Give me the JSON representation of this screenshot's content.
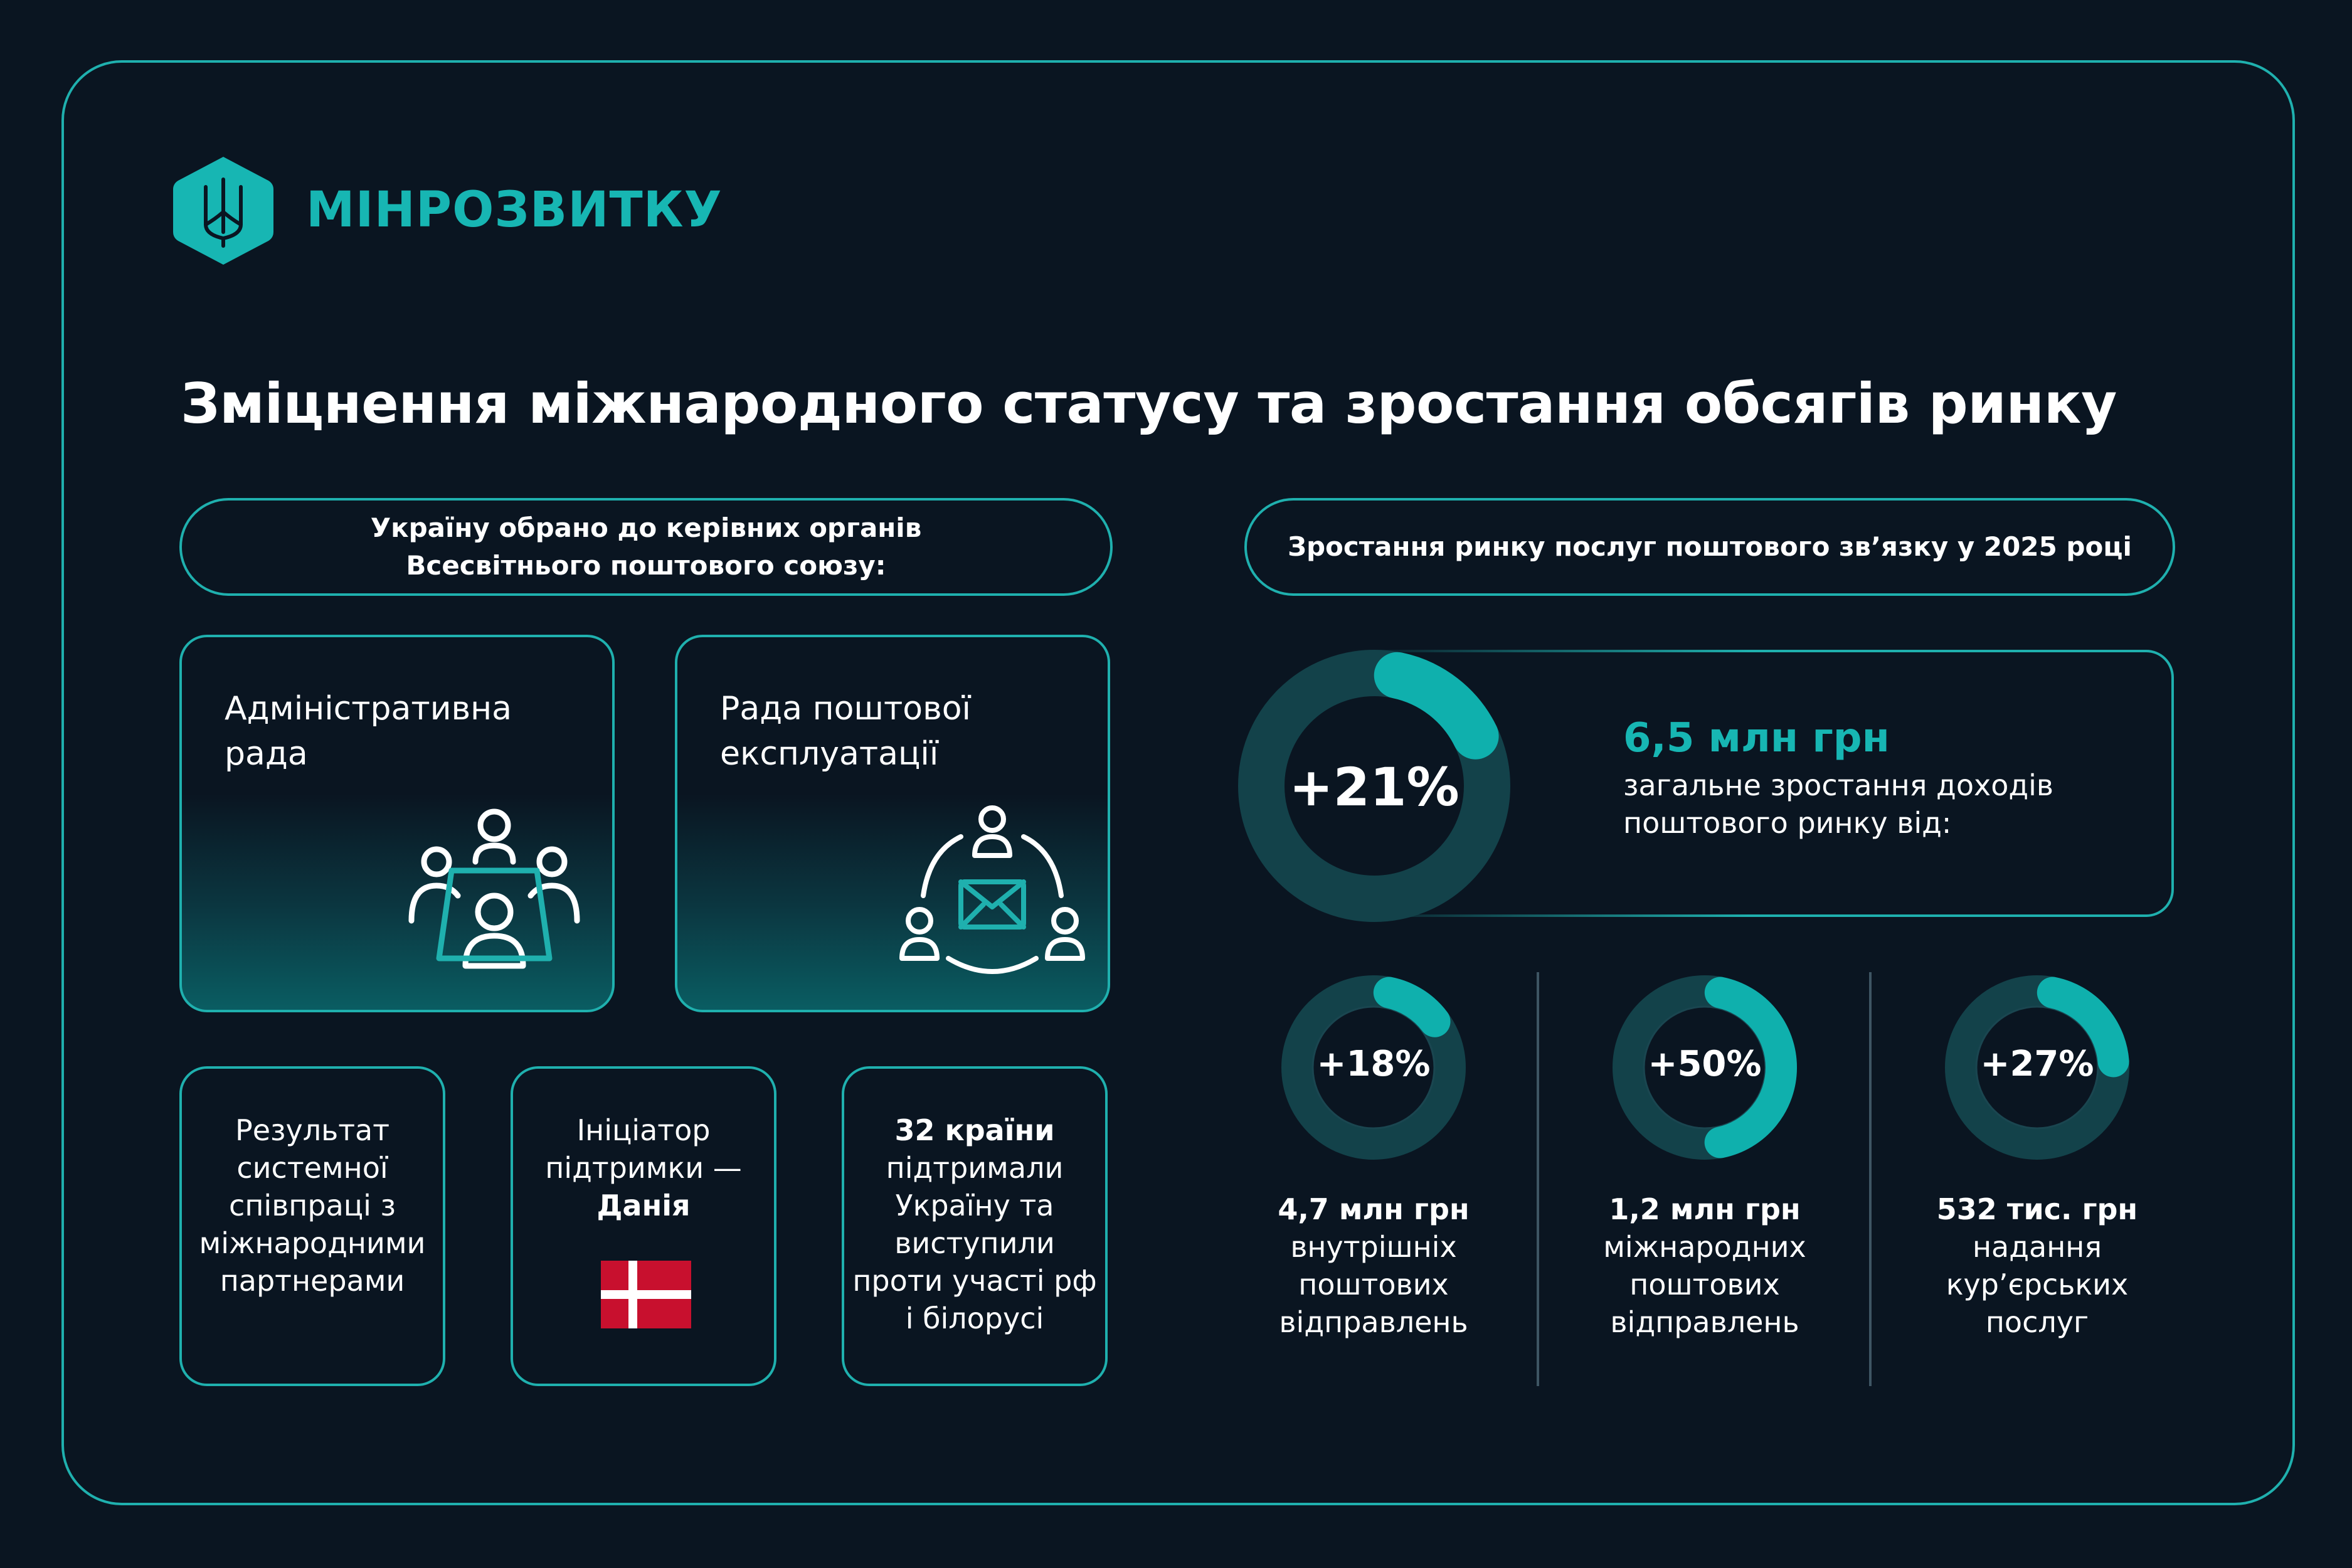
{
  "logo": {
    "name": "МІНРОЗВИТКУ",
    "icon": "trident-icon",
    "color": "#17b6b3"
  },
  "title": "Зміцнення міжнародного статусу та зростання обсягів ринку",
  "left": {
    "header_line1": "Україну обрано до керівних органів",
    "header_line2": "Всесвітнього поштового союзу:",
    "card1": {
      "title": "Адміністративна рада",
      "icon": "meeting-table-icon"
    },
    "card2": {
      "title": "Рада поштової експлуатації",
      "icon": "network-mail-icon"
    },
    "box1": {
      "text": "Результат системної співпраці з міжнародними партнерами"
    },
    "box2": {
      "text": "Ініціатор підтримки —",
      "bold": "Данія",
      "icon": "denmark-flag-icon"
    },
    "box3": {
      "bold": "32 країни",
      "text": "підтримали Україну та виступили проти участі рф і білорусі"
    }
  },
  "right": {
    "header": "Зростання ринку послуг поштового зв’язку у 2025 році",
    "main": {
      "percent": "+21%",
      "fraction": 0.21,
      "value": "6,5 млн грн",
      "desc": "загальне зростання доходів поштового ринку від:"
    },
    "items": [
      {
        "percent": "+18%",
        "fraction": 0.18,
        "value": "4,7 млн грн",
        "desc": "внутрішніх поштових відправлень"
      },
      {
        "percent": "+50%",
        "fraction": 0.5,
        "value": "1,2 млн грн",
        "desc": "міжнародних поштових відправлень"
      },
      {
        "percent": "+27%",
        "fraction": 0.27,
        "value": "532 тис. грн",
        "desc": "надання кур’єрських послуг"
      }
    ]
  },
  "colors": {
    "background": "#0a1521",
    "accent": "#1fb0ae",
    "ring_track": "#13424a"
  }
}
